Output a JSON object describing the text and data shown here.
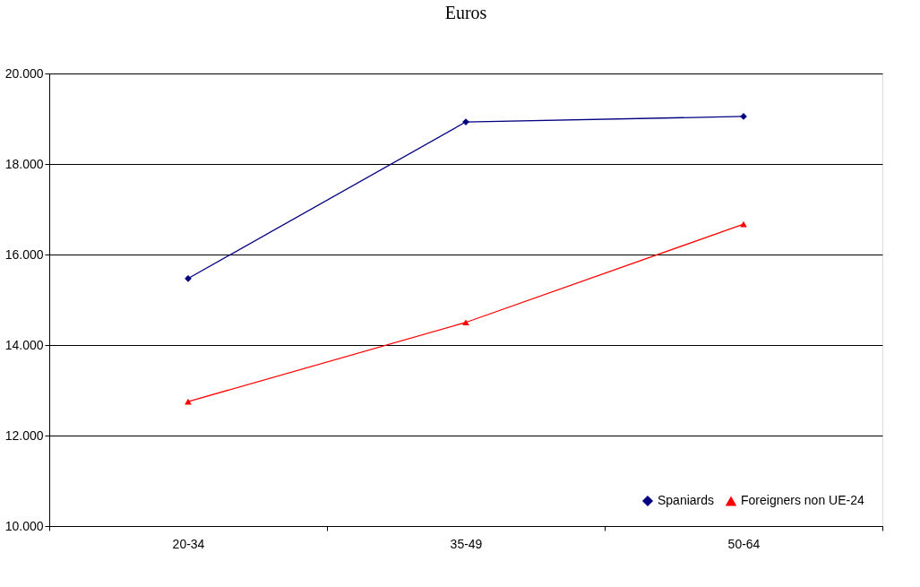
{
  "chart_data": {
    "type": "line",
    "title": "Euros",
    "categories": [
      "20-34",
      "35-49",
      "50-64"
    ],
    "series": [
      {
        "name": "Spaniards",
        "color": "#000080",
        "marker": "diamond",
        "values": [
          15470,
          18930,
          19050
        ]
      },
      {
        "name": "Foreigners non UE-24",
        "color": "#ff0000",
        "marker": "triangle",
        "values": [
          12750,
          14500,
          16670
        ]
      }
    ],
    "ylim": [
      10000,
      20000
    ],
    "yticks": [
      {
        "value": 10000,
        "label": "10.000"
      },
      {
        "value": 12000,
        "label": "12.000"
      },
      {
        "value": 14000,
        "label": "14.000"
      },
      {
        "value": 16000,
        "label": "16.000"
      },
      {
        "value": 18000,
        "label": "18.000"
      },
      {
        "value": 20000,
        "label": "20.000"
      }
    ],
    "grid": "y",
    "legend": "bottom right",
    "line_style": "solid"
  }
}
